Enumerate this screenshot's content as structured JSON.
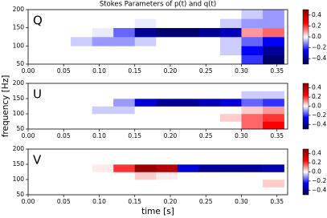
{
  "chart_data": [
    {
      "type": "heatmap",
      "title": "Stokes Parameters of p(t) and q(t)",
      "label": "Q",
      "x_edges": [
        0,
        0.03,
        0.06,
        0.09,
        0.12,
        0.15,
        0.18,
        0.21,
        0.24,
        0.27,
        0.3,
        0.33,
        0.36
      ],
      "y_edges": [
        50,
        75,
        100,
        125,
        150,
        175,
        200
      ],
      "values": [
        [
          0,
          0,
          0,
          0,
          0,
          0,
          0,
          0,
          0,
          0,
          -0.2,
          -0.45
        ],
        [
          0,
          0,
          0,
          0,
          0,
          0,
          0,
          0,
          0,
          -0.05,
          -0.25,
          -0.4
        ],
        [
          0,
          0,
          -0.05,
          -0.1,
          -0.1,
          -0.05,
          0,
          0,
          0,
          -0.05,
          -0.15,
          -0.25
        ],
        [
          0,
          0,
          0,
          -0.02,
          -0.15,
          -0.4,
          -0.45,
          -0.45,
          -0.4,
          -0.35,
          0.1,
          0.15
        ],
        [
          0,
          0,
          0,
          0,
          0,
          -0.02,
          0,
          0,
          0,
          -0.05,
          -0.1,
          -0.1
        ],
        [
          0,
          0,
          0,
          0,
          0,
          0,
          0,
          0,
          0,
          0,
          -0.05,
          -0.1
        ]
      ],
      "xlim": [
        0,
        0.365
      ],
      "ylim": [
        50,
        200
      ],
      "xticks": [
        {
          "value": 0,
          "label": "0.00"
        },
        {
          "value": 0.05,
          "label": "0.05"
        },
        {
          "value": 0.1,
          "label": "0.10"
        },
        {
          "value": 0.15,
          "label": "0.15"
        },
        {
          "value": 0.2,
          "label": "0.20"
        },
        {
          "value": 0.25,
          "label": "0.25"
        },
        {
          "value": 0.3,
          "label": "0.30"
        },
        {
          "value": 0.35,
          "label": "0.35"
        }
      ],
      "yticks": [
        50,
        100,
        150,
        200
      ],
      "clim": [
        -0.5,
        0.5
      ],
      "cticks": [
        {
          "value": 0.4,
          "label": "0.4"
        },
        {
          "value": 0.2,
          "label": "0.2"
        },
        {
          "value": 0,
          "label": "0.0"
        },
        {
          "value": -0.2,
          "label": "−0.2"
        },
        {
          "value": -0.4,
          "label": "−0.4"
        }
      ],
      "colormap": [
        "#00004c",
        "#0000ff",
        "#ffffff",
        "#ff0000",
        "#800000"
      ]
    },
    {
      "type": "heatmap",
      "label": "U",
      "ylabel": "frequency [Hz]",
      "x_edges": [
        0,
        0.03,
        0.06,
        0.09,
        0.12,
        0.15,
        0.18,
        0.21,
        0.24,
        0.27,
        0.3,
        0.33,
        0.36
      ],
      "y_edges": [
        50,
        75,
        100,
        125,
        150,
        175,
        200
      ],
      "values": [
        [
          0,
          0,
          0,
          0,
          0,
          0,
          0,
          0,
          0,
          0,
          0.15,
          0.25
        ],
        [
          0,
          0,
          0,
          0,
          0,
          0,
          0,
          0,
          0,
          0.05,
          0.15,
          0.2
        ],
        [
          0,
          0,
          0,
          -0.05,
          -0.05,
          0,
          0,
          0,
          0,
          0,
          0.05,
          0.1
        ],
        [
          0,
          0,
          0,
          0,
          -0.1,
          -0.3,
          -0.4,
          -0.4,
          -0.35,
          -0.3,
          -0.15,
          -0.2
        ],
        [
          0,
          0,
          0,
          0,
          0,
          0,
          0,
          0,
          0,
          0,
          -0.05,
          -0.05
        ],
        [
          0,
          0,
          0,
          0,
          0,
          0,
          0,
          0,
          0,
          0,
          0,
          0
        ]
      ],
      "xlim": [
        0,
        0.365
      ],
      "ylim": [
        50,
        200
      ],
      "xticks": [
        {
          "value": 0,
          "label": "0.00"
        },
        {
          "value": 0.05,
          "label": "0.05"
        },
        {
          "value": 0.1,
          "label": "0.10"
        },
        {
          "value": 0.15,
          "label": "0.15"
        },
        {
          "value": 0.2,
          "label": "0.20"
        },
        {
          "value": 0.25,
          "label": "0.25"
        },
        {
          "value": 0.3,
          "label": "0.30"
        },
        {
          "value": 0.35,
          "label": "0.35"
        }
      ],
      "yticks": [
        50,
        100,
        150,
        200
      ],
      "clim": [
        -0.5,
        0.5
      ],
      "cticks": [
        {
          "value": 0.4,
          "label": "0.4"
        },
        {
          "value": 0.2,
          "label": "0.2"
        },
        {
          "value": 0,
          "label": "0.0"
        },
        {
          "value": -0.2,
          "label": "−0.2"
        },
        {
          "value": -0.4,
          "label": "−0.4"
        }
      ],
      "colormap": [
        "#00004c",
        "#0000ff",
        "#ffffff",
        "#ff0000",
        "#800000"
      ]
    },
    {
      "type": "heatmap",
      "label": "V",
      "xlabel": "time [s]",
      "x_edges": [
        0,
        0.03,
        0.06,
        0.09,
        0.12,
        0.15,
        0.18,
        0.21,
        0.24,
        0.27,
        0.3,
        0.33,
        0.36
      ],
      "y_edges": [
        50,
        75,
        100,
        125,
        150,
        175,
        200
      ],
      "values": [
        [
          0,
          0,
          0,
          0,
          0,
          0,
          0,
          0,
          0,
          0,
          0,
          0
        ],
        [
          0,
          0,
          0,
          0,
          0,
          0,
          0,
          0,
          0,
          0,
          0,
          0.05
        ],
        [
          0,
          0,
          0,
          0,
          0,
          0.05,
          0.02,
          0,
          0,
          0,
          0,
          0
        ],
        [
          0,
          0,
          0,
          0.02,
          0.2,
          0.45,
          0.4,
          -0.3,
          -0.4,
          -0.4,
          -0.4,
          -0.35
        ],
        [
          0,
          0,
          0,
          0,
          0,
          0,
          0,
          0,
          0,
          0,
          0,
          0
        ],
        [
          0,
          0,
          0,
          0,
          0,
          0,
          0,
          0,
          0,
          0,
          0,
          0
        ]
      ],
      "xlim": [
        0,
        0.365
      ],
      "ylim": [
        50,
        200
      ],
      "xticks": [
        {
          "value": 0,
          "label": "0.00"
        },
        {
          "value": 0.05,
          "label": "0.05"
        },
        {
          "value": 0.1,
          "label": "0.10"
        },
        {
          "value": 0.15,
          "label": "0.15"
        },
        {
          "value": 0.2,
          "label": "0.20"
        },
        {
          "value": 0.25,
          "label": "0.25"
        },
        {
          "value": 0.3,
          "label": "0.30"
        },
        {
          "value": 0.35,
          "label": "0.35"
        }
      ],
      "yticks": [
        50,
        100,
        150,
        200
      ],
      "clim": [
        -0.5,
        0.5
      ],
      "cticks": [
        {
          "value": 0.4,
          "label": "0.4"
        },
        {
          "value": 0.2,
          "label": "0.2"
        },
        {
          "value": 0,
          "label": "0.0"
        },
        {
          "value": -0.2,
          "label": "−0.2"
        },
        {
          "value": -0.4,
          "label": "−0.4"
        }
      ],
      "colormap": [
        "#00004c",
        "#0000ff",
        "#ffffff",
        "#ff0000",
        "#800000"
      ]
    }
  ]
}
